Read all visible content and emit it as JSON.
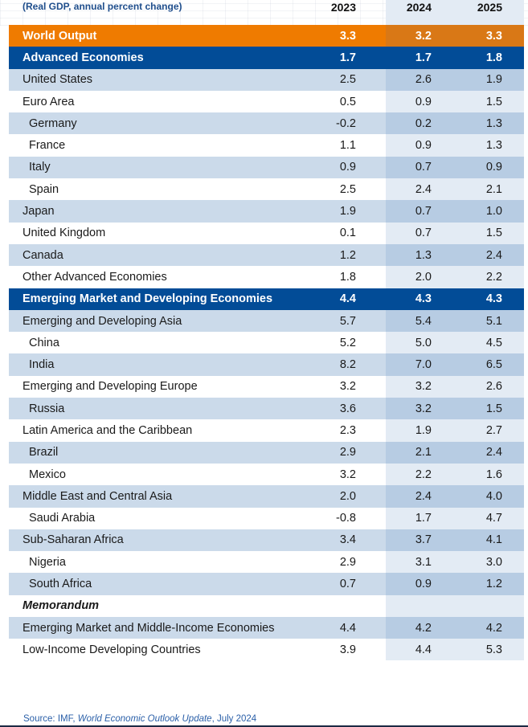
{
  "header": {
    "subtitle": "(Real GDP, annual percent change)",
    "years": [
      "2023",
      "2024",
      "2025"
    ]
  },
  "rows": [
    {
      "label": "World Output",
      "style": "orange",
      "values": [
        "3.3",
        "3.2",
        "3.3"
      ]
    },
    {
      "label": "Advanced Economies",
      "style": "blue",
      "values": [
        "1.7",
        "1.7",
        "1.8"
      ]
    },
    {
      "label": "United States",
      "style": "shaded",
      "values": [
        "2.5",
        "2.6",
        "1.9"
      ]
    },
    {
      "label": "Euro Area",
      "style": "plain",
      "values": [
        "0.5",
        "0.9",
        "1.5"
      ]
    },
    {
      "label": "Germany",
      "style": "shaded",
      "indent": true,
      "values": [
        "-0.2",
        "0.2",
        "1.3"
      ]
    },
    {
      "label": "France",
      "style": "plain",
      "indent": true,
      "values": [
        "1.1",
        "0.9",
        "1.3"
      ]
    },
    {
      "label": "Italy",
      "style": "shaded",
      "indent": true,
      "values": [
        "0.9",
        "0.7",
        "0.9"
      ]
    },
    {
      "label": "Spain",
      "style": "plain",
      "indent": true,
      "values": [
        "2.5",
        "2.4",
        "2.1"
      ]
    },
    {
      "label": "Japan",
      "style": "shaded",
      "values": [
        "1.9",
        "0.7",
        "1.0"
      ]
    },
    {
      "label": "United Kingdom",
      "style": "plain",
      "values": [
        "0.1",
        "0.7",
        "1.5"
      ]
    },
    {
      "label": "Canada",
      "style": "shaded",
      "values": [
        "1.2",
        "1.3",
        "2.4"
      ]
    },
    {
      "label": "Other Advanced Economies",
      "style": "plain",
      "values": [
        "1.8",
        "2.0",
        "2.2"
      ]
    },
    {
      "label": "Emerging Market and Developing Economies",
      "style": "blue",
      "values": [
        "4.4",
        "4.3",
        "4.3"
      ]
    },
    {
      "label": "Emerging and Developing Asia",
      "style": "shaded",
      "values": [
        "5.7",
        "5.4",
        "5.1"
      ]
    },
    {
      "label": "China",
      "style": "plain",
      "indent": true,
      "values": [
        "5.2",
        "5.0",
        "4.5"
      ]
    },
    {
      "label": "India",
      "style": "shaded",
      "indent": true,
      "values": [
        "8.2",
        "7.0",
        "6.5"
      ]
    },
    {
      "label": "Emerging and Developing Europe",
      "style": "plain",
      "values": [
        "3.2",
        "3.2",
        "2.6"
      ]
    },
    {
      "label": "Russia",
      "style": "shaded",
      "indent": true,
      "values": [
        "3.6",
        "3.2",
        "1.5"
      ]
    },
    {
      "label": "Latin America and the Caribbean",
      "style": "plain",
      "values": [
        "2.3",
        "1.9",
        "2.7"
      ]
    },
    {
      "label": "Brazil",
      "style": "shaded",
      "indent": true,
      "values": [
        "2.9",
        "2.1",
        "2.4"
      ]
    },
    {
      "label": "Mexico",
      "style": "plain",
      "indent": true,
      "values": [
        "3.2",
        "2.2",
        "1.6"
      ]
    },
    {
      "label": "Middle East and Central Asia",
      "style": "shaded",
      "values": [
        "2.0",
        "2.4",
        "4.0"
      ]
    },
    {
      "label": "Saudi Arabia",
      "style": "plain",
      "indent": true,
      "values": [
        "-0.8",
        "1.7",
        "4.7"
      ]
    },
    {
      "label": "Sub-Saharan Africa",
      "style": "shaded",
      "values": [
        "3.4",
        "3.7",
        "4.1"
      ]
    },
    {
      "label": "Nigeria",
      "style": "plain",
      "indent": true,
      "values": [
        "2.9",
        "3.1",
        "3.0"
      ]
    },
    {
      "label": "South Africa",
      "style": "shaded",
      "indent": true,
      "values": [
        "0.7",
        "0.9",
        "1.2"
      ]
    },
    {
      "label": "Memorandum",
      "style": "plain memo",
      "values": [
        "",
        "",
        ""
      ]
    },
    {
      "label": "Emerging Market and Middle-Income Economies",
      "style": "shaded",
      "values": [
        "4.4",
        "4.2",
        "4.2"
      ]
    },
    {
      "label": "Low-Income Developing Countries",
      "style": "plain",
      "values": [
        "3.9",
        "4.4",
        "5.3"
      ]
    }
  ],
  "source": {
    "prefix": "Source: IMF, ",
    "title": "World Economic Outlook Update",
    "suffix": ", July 2024"
  },
  "colors": {
    "orange": "#ef7b00",
    "blue": "#024c97",
    "shaded": "#cbdaea",
    "shaded_2024": "#b7cce3",
    "light_2024": "#e3ebf4"
  }
}
